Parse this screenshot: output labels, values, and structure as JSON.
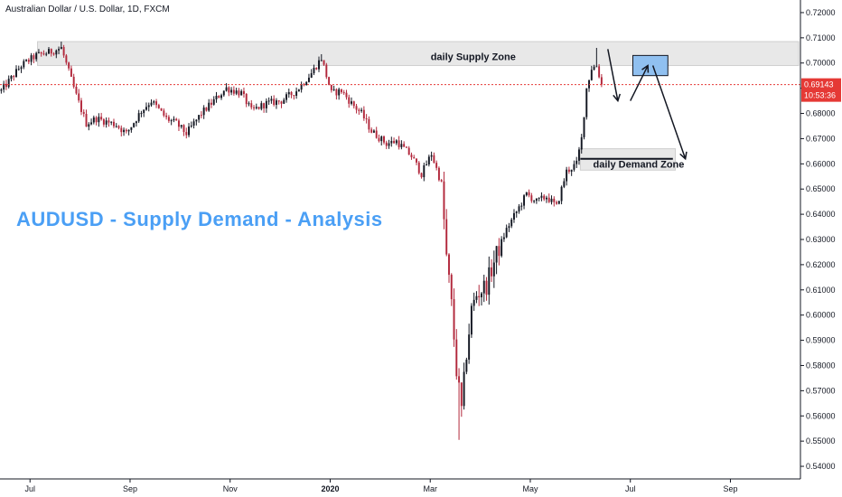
{
  "legend": "Australian Dollar / U.S. Dollar, 1D, FXCM",
  "title_overlay": "AUDUSD - Supply Demand - Analysis",
  "colors": {
    "up": "#131722",
    "down": "#b2283c",
    "accent": "#4a9ff5",
    "price_line": "#e53935",
    "zone_fill": "#e8e8e8",
    "target_box": "#90c0f0"
  },
  "current_price": "0.69143",
  "countdown": "10:53:36",
  "chart_data": {
    "type": "candlestick",
    "title": "Australian Dollar / U.S. Dollar, 1D, FXCM",
    "ylim": [
      0.535,
      0.725
    ],
    "y_ticks": [
      "0.72000",
      "0.71000",
      "0.70000",
      "0.69000",
      "0.68000",
      "0.67000",
      "0.66000",
      "0.65000",
      "0.64000",
      "0.63000",
      "0.62000",
      "0.61000",
      "0.60000",
      "0.59000",
      "0.58000",
      "0.57000",
      "0.56000",
      "0.55000",
      "0.54000"
    ],
    "x_ticks": [
      {
        "label": "Jul",
        "index": 12,
        "bold": false
      },
      {
        "label": "Sep",
        "index": 52,
        "bold": false
      },
      {
        "label": "Nov",
        "index": 92,
        "bold": false
      },
      {
        "label": "2020",
        "index": 132,
        "bold": true
      },
      {
        "label": "Mar",
        "index": 172,
        "bold": false
      },
      {
        "label": "May",
        "index": 212,
        "bold": false
      },
      {
        "label": "Jul",
        "index": 252,
        "bold": false
      },
      {
        "label": "Sep",
        "index": 292,
        "bold": false
      }
    ],
    "path": [
      [
        0,
        0.689
      ],
      [
        8,
        0.699
      ],
      [
        14,
        0.703
      ],
      [
        20,
        0.7045
      ],
      [
        24,
        0.706
      ],
      [
        30,
        0.687
      ],
      [
        34,
        0.676
      ],
      [
        38,
        0.678
      ],
      [
        46,
        0.6755
      ],
      [
        50,
        0.672
      ],
      [
        56,
        0.681
      ],
      [
        60,
        0.685
      ],
      [
        66,
        0.678
      ],
      [
        70,
        0.676
      ],
      [
        74,
        0.672
      ],
      [
        80,
        0.68
      ],
      [
        86,
        0.686
      ],
      [
        90,
        0.69
      ],
      [
        96,
        0.688
      ],
      [
        100,
        0.681
      ],
      [
        106,
        0.684
      ],
      [
        112,
        0.685
      ],
      [
        118,
        0.689
      ],
      [
        124,
        0.696
      ],
      [
        128,
        0.702
      ],
      [
        132,
        0.688
      ],
      [
        136,
        0.689
      ],
      [
        140,
        0.684
      ],
      [
        144,
        0.68
      ],
      [
        148,
        0.673
      ],
      [
        154,
        0.668
      ],
      [
        158,
        0.669
      ],
      [
        164,
        0.663
      ],
      [
        168,
        0.656
      ],
      [
        172,
        0.664
      ],
      [
        176,
        0.652
      ],
      [
        178,
        0.623
      ],
      [
        180,
        0.604
      ],
      [
        182,
        0.578
      ],
      [
        184,
        0.562
      ],
      [
        186,
        0.585
      ],
      [
        188,
        0.602
      ],
      [
        190,
        0.608
      ],
      [
        194,
        0.612
      ],
      [
        198,
        0.624
      ],
      [
        202,
        0.634
      ],
      [
        206,
        0.641
      ],
      [
        210,
        0.648
      ],
      [
        214,
        0.645
      ],
      [
        218,
        0.647
      ],
      [
        222,
        0.643
      ],
      [
        226,
        0.657
      ],
      [
        230,
        0.66
      ],
      [
        232,
        0.67
      ],
      [
        234,
        0.69
      ],
      [
        236,
        0.698
      ],
      [
        238,
        0.699
      ],
      [
        240,
        0.6914
      ]
    ],
    "spikes": [
      {
        "index": 183,
        "low": 0.5505
      },
      {
        "index": 24,
        "high": 0.7085
      },
      {
        "index": 128,
        "high": 0.7035
      },
      {
        "index": 238,
        "high": 0.706
      }
    ],
    "last_index": 240,
    "x_max_index": 320,
    "current_price": 0.69143
  },
  "annotations": {
    "supply_zone": {
      "label": "daily Supply Zone",
      "low": 0.699,
      "high": 0.7085,
      "from": 15,
      "to": 320
    },
    "demand_zone": {
      "label": "daily Demand Zone",
      "low": 0.6575,
      "high": 0.666,
      "from": 232,
      "to": 270
    },
    "demand_line": {
      "price": 0.662,
      "from": 232,
      "to": 269
    },
    "target_box": {
      "low": 0.695,
      "high": 0.703,
      "from": 253,
      "to": 267
    },
    "arrows": [
      {
        "from": [
          243,
          0.7055
        ],
        "to": [
          247,
          0.685
        ]
      },
      {
        "from": [
          252,
          0.685
        ],
        "to": [
          259,
          0.699
        ]
      },
      {
        "from": [
          261,
          0.699
        ],
        "to": [
          274,
          0.662
        ]
      }
    ]
  }
}
